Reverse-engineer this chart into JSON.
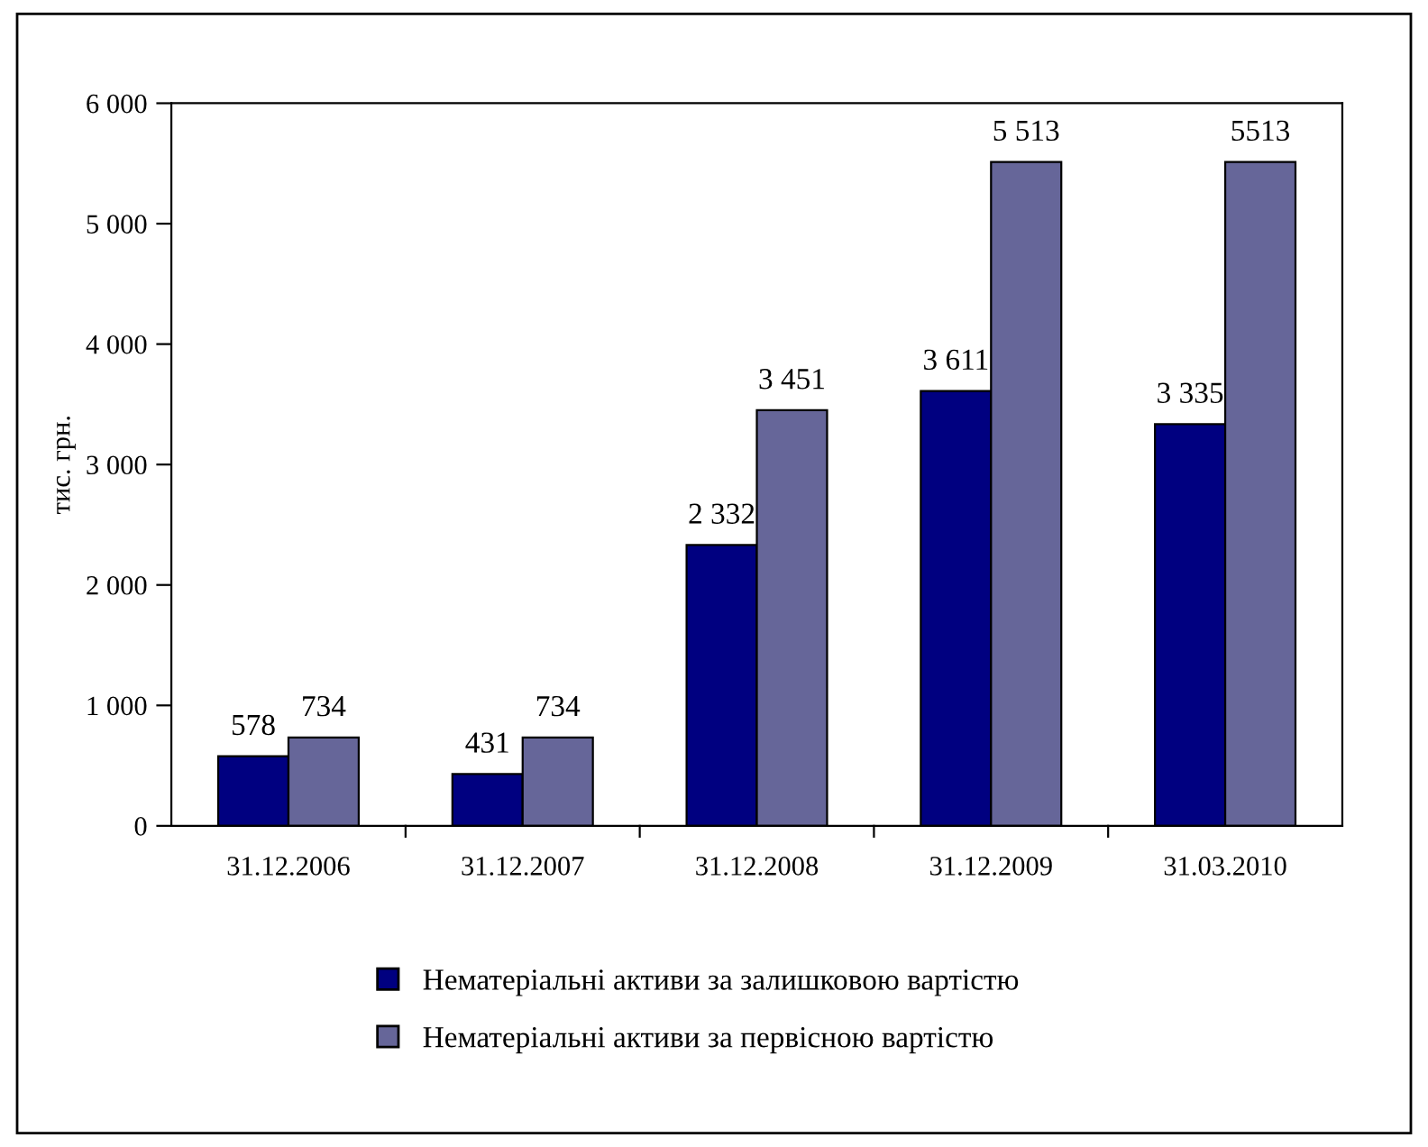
{
  "chart_data": {
    "type": "bar",
    "ylabel": "тис. грн.",
    "categories": [
      "31.12.2006",
      "31.12.2007",
      "31.12.2008",
      "31.12.2009",
      "31.03.2010"
    ],
    "series": [
      {
        "name": "Нематеріальні активи за залишковою вартістю",
        "color": "#000080",
        "values": [
          578,
          431,
          2332,
          3611,
          3335
        ],
        "value_labels": [
          "578",
          "431",
          "2 332",
          "3 611",
          "3 335"
        ]
      },
      {
        "name": "Нематеріальні активи за первісною вартістю",
        "color": "#666699",
        "values": [
          734,
          734,
          3451,
          5513,
          5513
        ],
        "value_labels": [
          "734",
          "734",
          "3 451",
          "5 513",
          "5513"
        ]
      }
    ],
    "ylim": [
      0,
      6000
    ],
    "yticks": [
      0,
      {
        "value": 1000,
        "label": "1 000"
      },
      {
        "value": 2000,
        "label": "2 000"
      },
      {
        "value": 3000,
        "label": "3 000"
      },
      {
        "value": 4000,
        "label": "4 000"
      },
      {
        "value": 5000,
        "label": "5 000"
      },
      {
        "value": 6000,
        "label": "6 000"
      }
    ],
    "grid": false,
    "legend": "bottom"
  }
}
